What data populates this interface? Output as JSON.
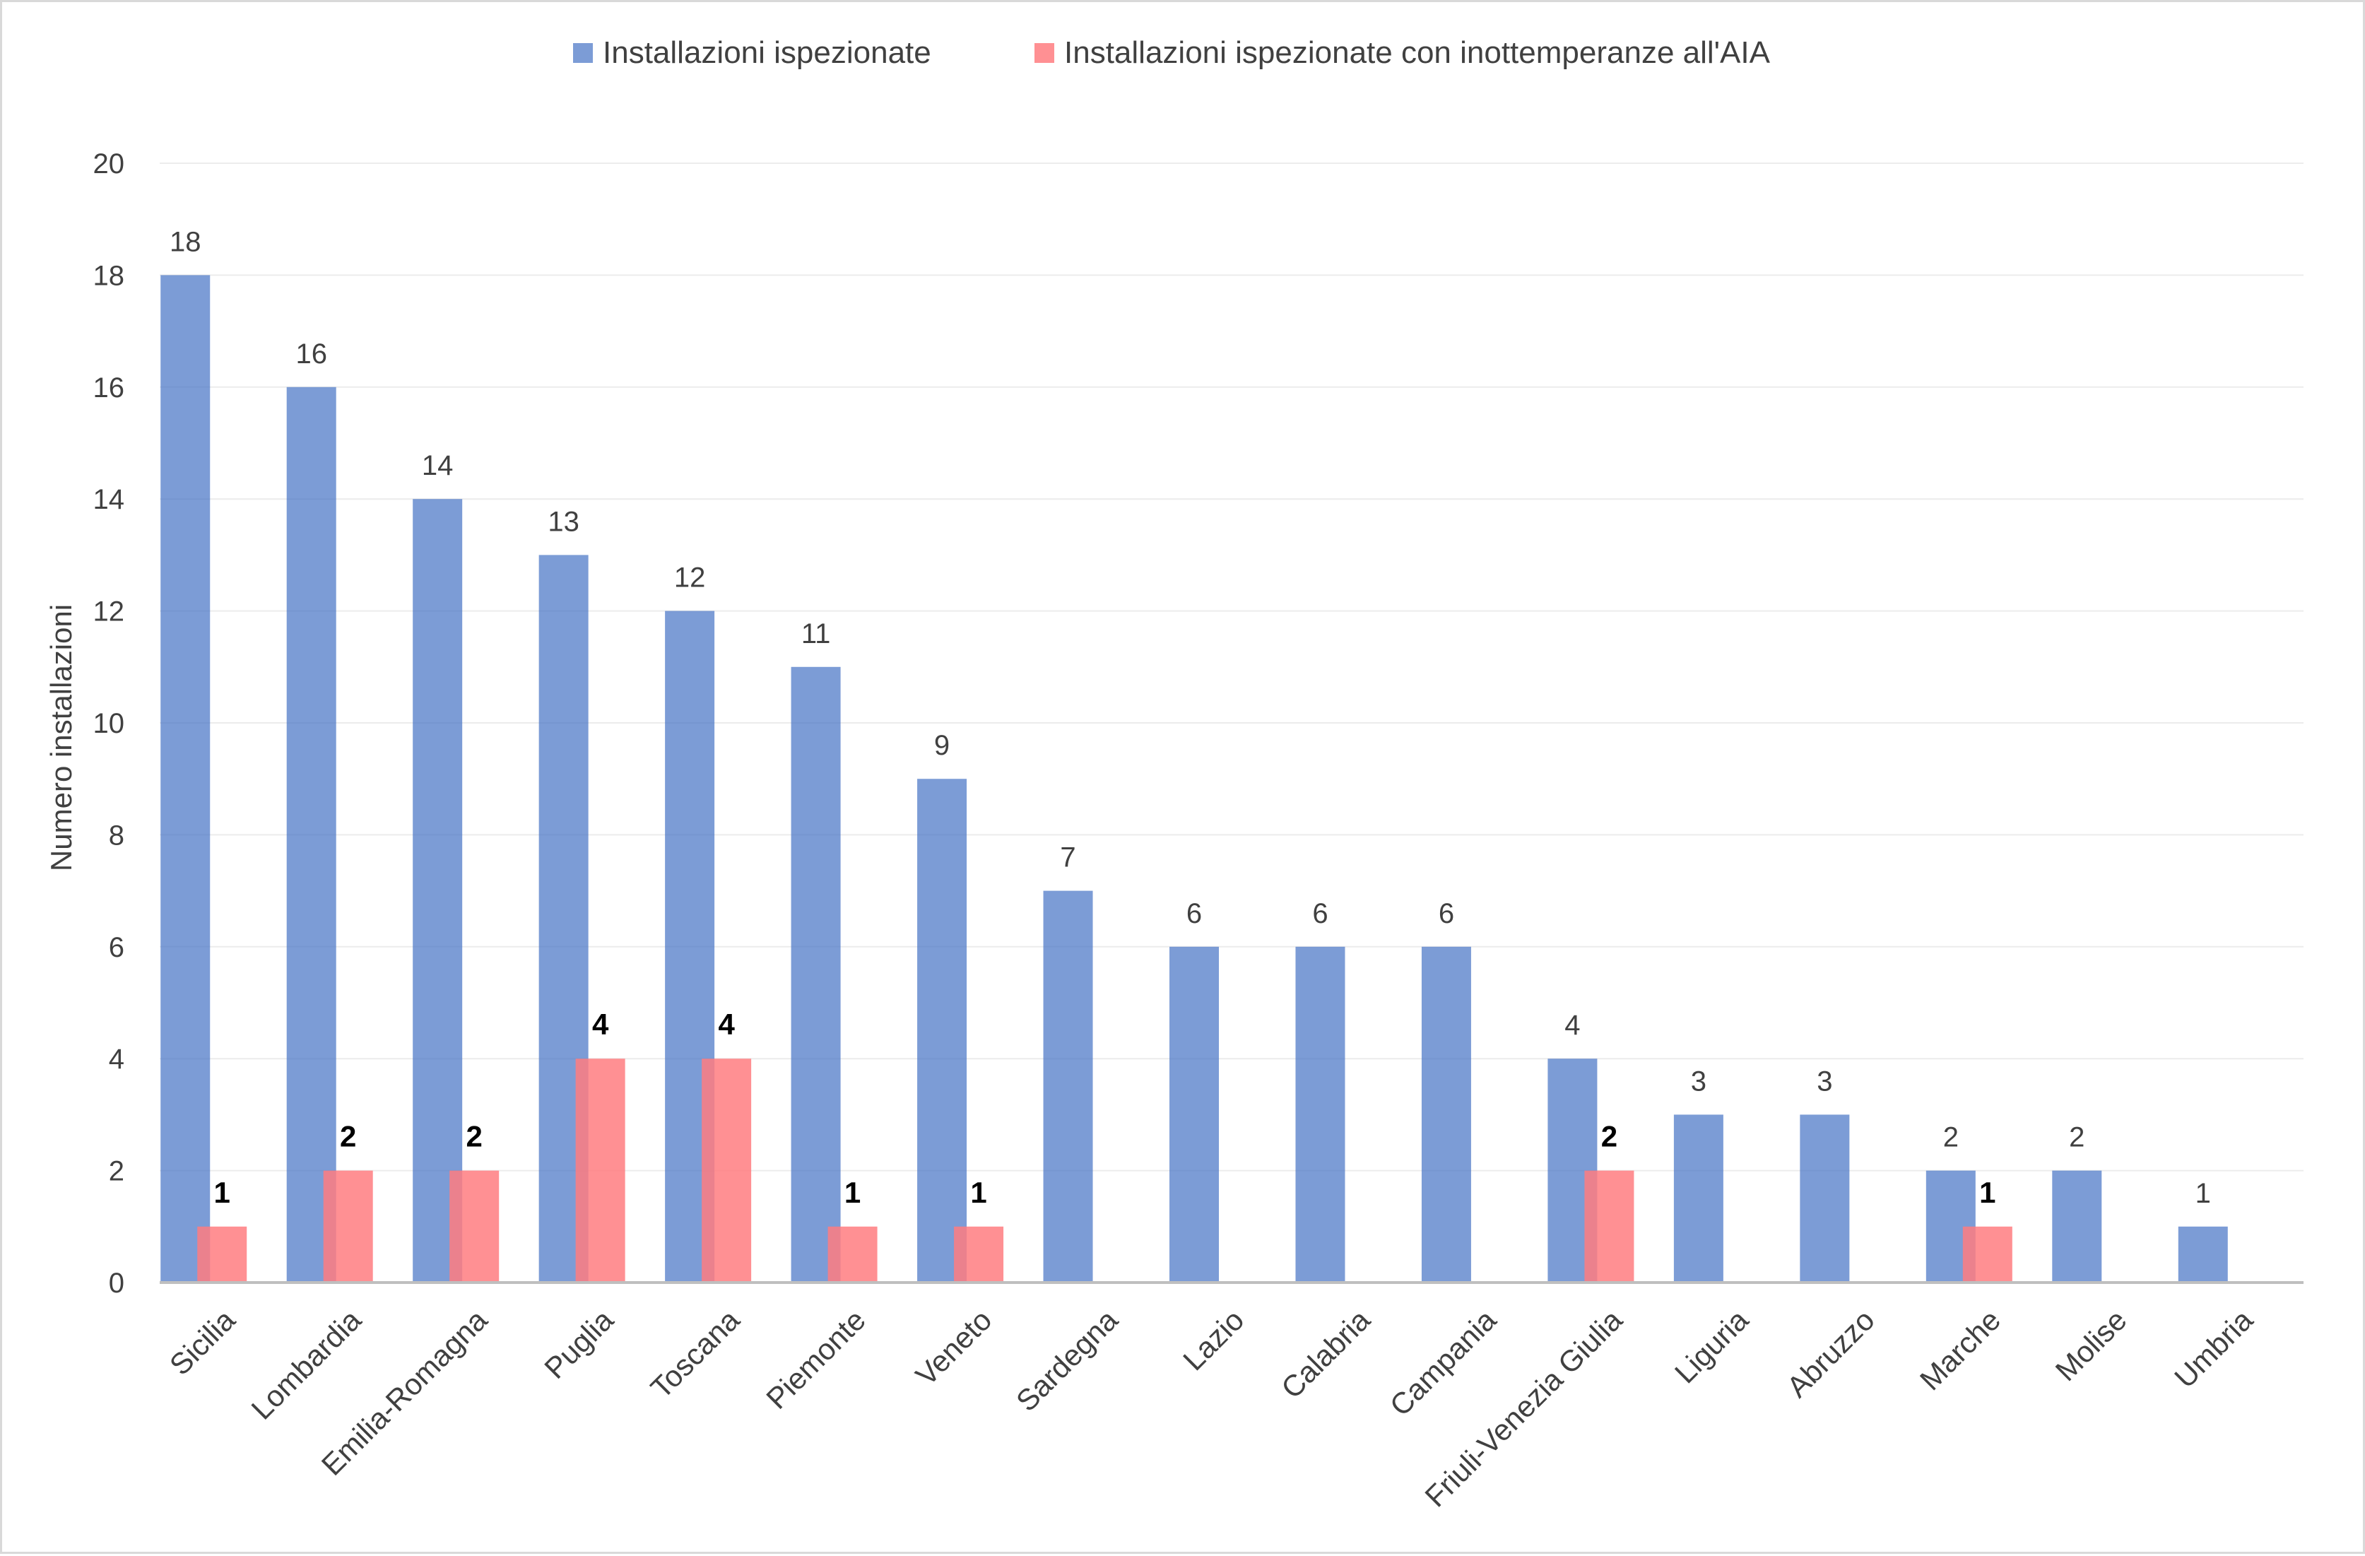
{
  "chart_data": {
    "type": "bar",
    "title": "",
    "xlabel": "",
    "ylabel": "Numero installazioni",
    "ylim": [
      0,
      20
    ],
    "yticks": [
      "0",
      "2",
      "4",
      "6",
      "8",
      "10",
      "12",
      "14",
      "16",
      "18",
      "20"
    ],
    "grid": true,
    "legend_position": "top",
    "categories": [
      "Sicilia",
      "Lombardia",
      "Emilia-Romagna",
      "Puglia",
      "Toscana",
      "Piemonte",
      "Veneto",
      "Sardegna",
      "Lazio",
      "Calabria",
      "Campania",
      "Friuli-Venezia Giulia",
      "Liguria",
      "Abruzzo",
      "Marche",
      "Molise",
      "Umbria"
    ],
    "series": [
      {
        "name": "Installazioni ispezionate",
        "color": "#4472c4",
        "values": [
          18,
          16,
          14,
          13,
          12,
          11,
          9,
          7,
          6,
          6,
          6,
          4,
          3,
          3,
          2,
          2,
          1
        ]
      },
      {
        "name": "Installazioni ispezionate con inottemperanze all'AIA",
        "color": "#ff7c80",
        "values": [
          1,
          2,
          2,
          4,
          4,
          1,
          1,
          null,
          null,
          null,
          null,
          2,
          null,
          null,
          1,
          null,
          null
        ]
      }
    ]
  }
}
